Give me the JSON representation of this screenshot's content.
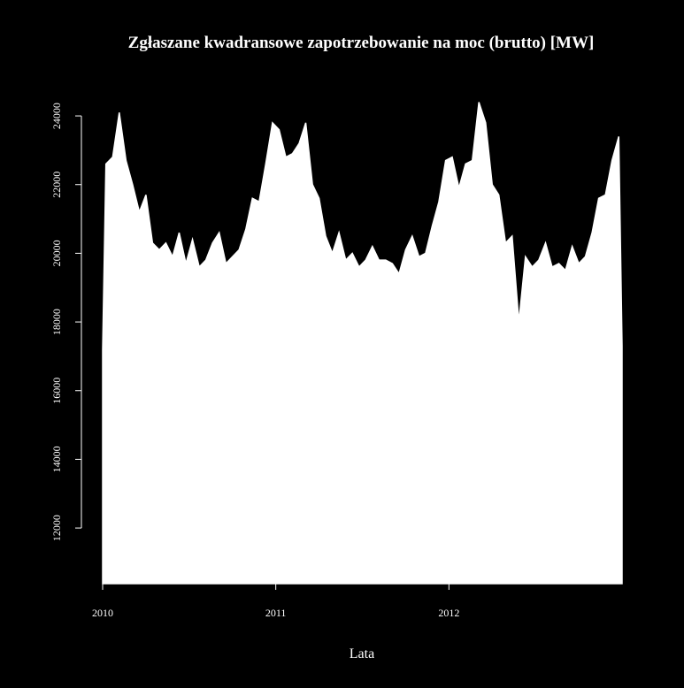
{
  "chart_data": {
    "type": "area",
    "title": "Zgłaszane kwadransowe zapotrzebowanie na moc (brutto) [MW]",
    "x_label": "Lata",
    "color": "#ffffff",
    "background": "#000000",
    "x": [
      2010,
      2010.019,
      2010.058,
      2010.096,
      2010.135,
      2010.173,
      2010.212,
      2010.25,
      2010.288,
      2010.327,
      2010.365,
      2010.404,
      2010.442,
      2010.481,
      2010.519,
      2010.558,
      2010.596,
      2010.635,
      2010.673,
      2010.712,
      2010.75,
      2010.788,
      2010.827,
      2010.865,
      2010.904,
      2010.942,
      2010.981,
      2011.019,
      2011.058,
      2011.096,
      2011.135,
      2011.173,
      2011.212,
      2011.25,
      2011.288,
      2011.327,
      2011.365,
      2011.404,
      2011.442,
      2011.481,
      2011.519,
      2011.558,
      2011.596,
      2011.635,
      2011.673,
      2011.712,
      2011.75,
      2011.788,
      2011.827,
      2011.865,
      2011.904,
      2011.942,
      2011.981,
      2012.019,
      2012.058,
      2012.096,
      2012.135,
      2012.173,
      2012.212,
      2012.25,
      2012.288,
      2012.327,
      2012.365,
      2012.404,
      2012.442,
      2012.481,
      2012.519,
      2012.558,
      2012.596,
      2012.635,
      2012.673,
      2012.712,
      2012.75,
      2012.788,
      2012.827,
      2012.865,
      2012.904,
      2012.942,
      2012.981,
      2013
    ],
    "values": [
      17200,
      22600,
      22800,
      24100,
      22700,
      22000,
      21200,
      21700,
      20300,
      20100,
      20300,
      19900,
      20600,
      19700,
      20400,
      19600,
      19800,
      20300,
      20600,
      19700,
      19900,
      20100,
      20700,
      21600,
      21500,
      22600,
      23800,
      23600,
      22800,
      22900,
      23200,
      23800,
      22000,
      21600,
      20500,
      20000,
      20600,
      19800,
      20000,
      19600,
      19800,
      20200,
      19800,
      19800,
      19700,
      19400,
      20100,
      20500,
      19900,
      20000,
      20800,
      21500,
      22700,
      22800,
      21900,
      22600,
      22700,
      24400,
      23800,
      22000,
      21700,
      20300,
      20500,
      18000,
      19900,
      19600,
      19800,
      20300,
      19600,
      19700,
      19500,
      20200,
      19700,
      19900,
      20600,
      21600,
      21700,
      22700,
      23400,
      17300
    ],
    "xlim": [
      2010,
      2013
    ],
    "ylim": [
      10380,
      24800
    ],
    "xticks": [
      2010,
      2011,
      2012
    ],
    "yticks": [
      12000,
      14000,
      16000,
      18000,
      20000,
      22000,
      24000
    ]
  }
}
